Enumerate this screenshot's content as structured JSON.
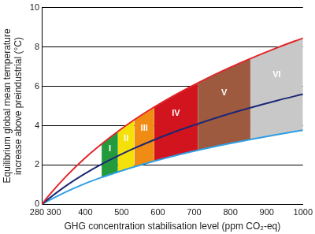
{
  "chart_data": {
    "type": "line",
    "x_label": "GHG concentration stabilisation level (ppm CO₂-eq)",
    "y_label": [
      "Equilibrium global mean temperature",
      "increase above preindustrial (°C)"
    ],
    "x": [
      280,
      300,
      350,
      400,
      445,
      490,
      535,
      590,
      650,
      710,
      780,
      855,
      930,
      1000
    ],
    "series": [
      {
        "color": "#e3262a",
        "values": [
          0,
          0.46,
          1.48,
          2.37,
          3.07,
          3.71,
          4.3,
          4.95,
          5.59,
          6.17,
          6.8,
          7.41,
          7.97,
          8.45
        ]
      },
      {
        "color": "#1c2777",
        "values": [
          0,
          0.3,
          0.98,
          1.57,
          2.04,
          2.46,
          2.85,
          3.28,
          3.71,
          4.09,
          4.51,
          4.91,
          5.28,
          5.6
        ]
      },
      {
        "color": "#2e9fe3",
        "values": [
          0,
          0.2,
          0.66,
          1.06,
          1.37,
          1.65,
          1.91,
          2.2,
          2.49,
          2.75,
          3.03,
          3.3,
          3.55,
          3.77
        ]
      }
    ],
    "bands": [
      {
        "label": "I",
        "from": 445,
        "to": 490,
        "color": "#239b3c"
      },
      {
        "label": "II",
        "from": 490,
        "to": 535,
        "color": "#f5e10a"
      },
      {
        "label": "III",
        "from": 535,
        "to": 590,
        "color": "#f08c14"
      },
      {
        "label": "IV",
        "from": 590,
        "to": 710,
        "color": "#d2141e"
      },
      {
        "label": "V",
        "from": 710,
        "to": 855,
        "color": "#9e5a3e"
      },
      {
        "label": "VI",
        "from": 855,
        "to": 1000,
        "color": "#c8c8c8"
      }
    ],
    "xlim": [
      280,
      1000
    ],
    "xticks": [
      280,
      300,
      400,
      500,
      600,
      700,
      800,
      900,
      1000
    ],
    "ylim": [
      0,
      10
    ],
    "yticks": [
      0,
      2,
      4,
      6,
      8,
      10
    ],
    "grid": "y"
  }
}
